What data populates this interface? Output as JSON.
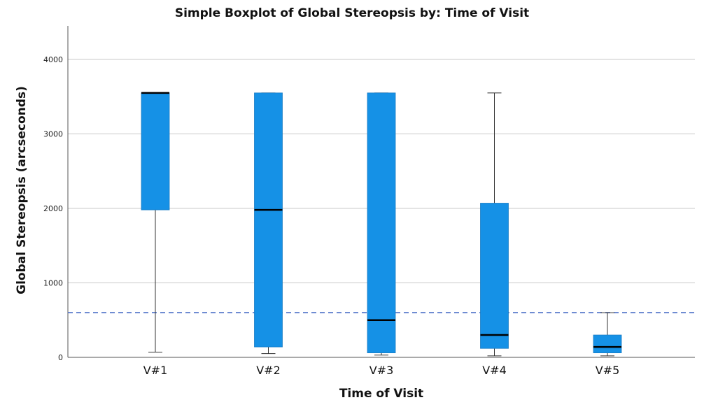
{
  "chart_data": {
    "type": "boxplot",
    "title": "Simple Boxplot of Global Stereopsis by: Time of Visit",
    "xlabel": "Time of Visit",
    "ylabel": "Global Stereopsis (arcseconds)",
    "ylim": [
      0,
      4450
    ],
    "yticks": [
      0,
      1000,
      2000,
      3000,
      4000
    ],
    "grid": true,
    "reference_line": {
      "y": 600,
      "style": "dashed",
      "color": "#4a6fc7"
    },
    "box_color": "#1591e6",
    "categories": [
      "V#1",
      "V#2",
      "V#3",
      "V#4",
      "V#5"
    ],
    "boxes": [
      {
        "whisker_low": 70,
        "q1": 1980,
        "median": 3550,
        "q3": 3550,
        "whisker_high": 3550
      },
      {
        "whisker_low": 50,
        "q1": 140,
        "median": 1980,
        "q3": 3550,
        "whisker_high": 3550
      },
      {
        "whisker_low": 30,
        "q1": 60,
        "median": 500,
        "q3": 3550,
        "whisker_high": 3550
      },
      {
        "whisker_low": 20,
        "q1": 120,
        "median": 300,
        "q3": 2070,
        "whisker_high": 3550
      },
      {
        "whisker_low": 20,
        "q1": 60,
        "median": 140,
        "q3": 300,
        "whisker_high": 600
      }
    ]
  }
}
